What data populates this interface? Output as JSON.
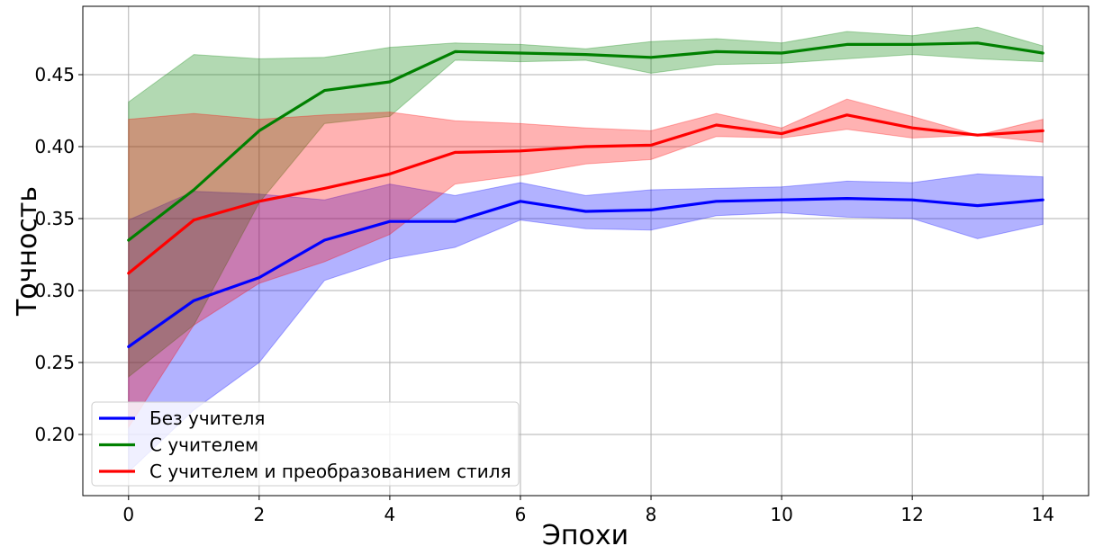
{
  "chart_data": {
    "type": "line",
    "title": "",
    "xlabel": "Эпохи",
    "ylabel": "Точность",
    "xlim": [
      -0.7,
      14.7
    ],
    "ylim": [
      0.1575,
      0.4975
    ],
    "xticks": [
      0,
      2,
      4,
      6,
      8,
      10,
      12,
      14
    ],
    "yticks": [
      0.2,
      0.25,
      0.3,
      0.35,
      0.4,
      0.45
    ],
    "grid": true,
    "legend_position": "lower-left",
    "x": [
      0,
      1,
      2,
      3,
      4,
      5,
      6,
      7,
      8,
      9,
      10,
      11,
      12,
      13,
      14
    ],
    "series": [
      {
        "name": "Без учителя",
        "color": "#0000ff",
        "band_color": "#0000ff",
        "values": [
          0.261,
          0.293,
          0.309,
          0.335,
          0.348,
          0.348,
          0.362,
          0.355,
          0.356,
          0.362,
          0.363,
          0.364,
          0.363,
          0.359,
          0.363
        ],
        "band_lower": [
          0.174,
          0.217,
          0.25,
          0.307,
          0.322,
          0.33,
          0.349,
          0.343,
          0.342,
          0.352,
          0.354,
          0.351,
          0.35,
          0.336,
          0.346
        ],
        "band_upper": [
          0.349,
          0.369,
          0.367,
          0.363,
          0.374,
          0.366,
          0.375,
          0.366,
          0.37,
          0.371,
          0.372,
          0.376,
          0.375,
          0.381,
          0.379
        ]
      },
      {
        "name": "С учителем",
        "color": "#008000",
        "band_color": "#008000",
        "values": [
          0.335,
          0.37,
          0.411,
          0.439,
          0.445,
          0.466,
          0.465,
          0.464,
          0.462,
          0.466,
          0.465,
          0.471,
          0.471,
          0.472,
          0.465
        ],
        "band_lower": [
          0.24,
          0.276,
          0.361,
          0.416,
          0.421,
          0.46,
          0.459,
          0.46,
          0.451,
          0.457,
          0.458,
          0.461,
          0.464,
          0.461,
          0.459
        ],
        "band_upper": [
          0.431,
          0.464,
          0.461,
          0.462,
          0.469,
          0.472,
          0.471,
          0.468,
          0.473,
          0.475,
          0.472,
          0.48,
          0.477,
          0.483,
          0.47
        ]
      },
      {
        "name": "С учителем и преобразованием стиля",
        "color": "#ff0000",
        "band_color": "#ff0000",
        "values": [
          0.312,
          0.349,
          0.362,
          0.371,
          0.381,
          0.396,
          0.397,
          0.4,
          0.401,
          0.415,
          0.409,
          0.422,
          0.413,
          0.408,
          0.411
        ],
        "band_lower": [
          0.205,
          0.276,
          0.305,
          0.32,
          0.339,
          0.374,
          0.38,
          0.388,
          0.391,
          0.407,
          0.406,
          0.412,
          0.406,
          0.408,
          0.403
        ],
        "band_upper": [
          0.419,
          0.423,
          0.419,
          0.422,
          0.424,
          0.418,
          0.416,
          0.413,
          0.411,
          0.423,
          0.413,
          0.433,
          0.421,
          0.408,
          0.419
        ]
      }
    ]
  }
}
